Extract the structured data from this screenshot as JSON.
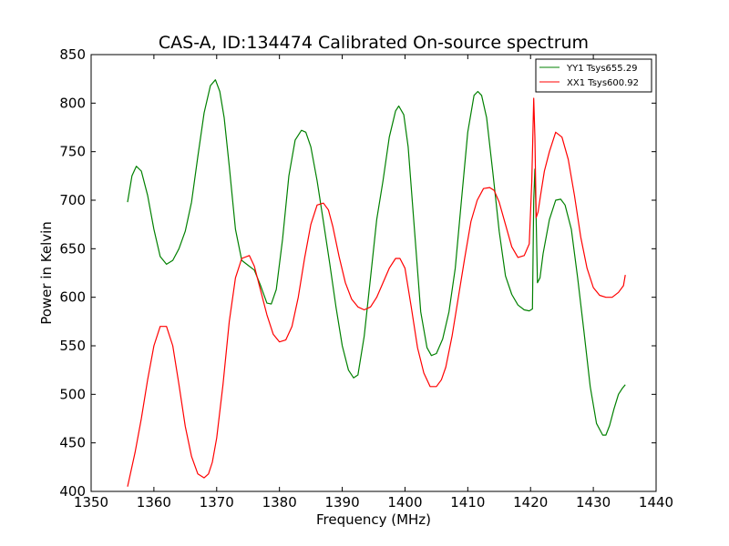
{
  "chart_data": {
    "type": "line",
    "title": "CAS-A, ID:134474 Calibrated On-source spectrum",
    "xlabel": "Frequency (MHz)",
    "ylabel": "Power in Kelvin",
    "xlim": [
      1350,
      1440
    ],
    "ylim": [
      400,
      850
    ],
    "xticks": [
      1350,
      1360,
      1370,
      1380,
      1390,
      1400,
      1410,
      1420,
      1430,
      1440
    ],
    "yticks": [
      400,
      450,
      500,
      550,
      600,
      650,
      700,
      750,
      800,
      850
    ],
    "grid": false,
    "legend_position": "top-right",
    "series": [
      {
        "name": "YY1 Tsys655.29",
        "color": "#008000",
        "x": [
          1355.8,
          1356.5,
          1357.2,
          1358.0,
          1359.0,
          1360.0,
          1361.0,
          1362.0,
          1363.0,
          1364.0,
          1365.0,
          1366.0,
          1367.0,
          1368.0,
          1369.0,
          1369.8,
          1370.5,
          1371.2,
          1372.0,
          1373.0,
          1374.0,
          1375.0,
          1376.0,
          1377.0,
          1378.0,
          1378.7,
          1379.5,
          1380.5,
          1381.5,
          1382.5,
          1383.5,
          1384.2,
          1385.0,
          1386.0,
          1387.0,
          1388.0,
          1389.0,
          1390.0,
          1391.0,
          1391.8,
          1392.5,
          1393.5,
          1394.5,
          1395.5,
          1396.5,
          1397.5,
          1398.5,
          1399.0,
          1399.8,
          1400.5,
          1401.5,
          1402.5,
          1403.5,
          1404.2,
          1405.0,
          1406.0,
          1407.0,
          1408.0,
          1409.0,
          1410.0,
          1411.0,
          1411.6,
          1412.2,
          1413.0,
          1414.0,
          1415.0,
          1416.0,
          1417.0,
          1418.0,
          1419.0,
          1419.8,
          1420.3,
          1420.5,
          1420.7,
          1420.9,
          1421.1,
          1421.5,
          1422.0,
          1423.0,
          1424.0,
          1424.8,
          1425.5,
          1426.5,
          1427.5,
          1428.5,
          1429.5,
          1430.5,
          1431.5,
          1432.0,
          1432.6,
          1433.3,
          1434.0,
          1434.6,
          1435.1
        ],
        "y": [
          698,
          725,
          735,
          730,
          705,
          670,
          642,
          634,
          638,
          650,
          668,
          698,
          745,
          790,
          818,
          824,
          812,
          785,
          735,
          670,
          638,
          633,
          628,
          612,
          594,
          593,
          608,
          660,
          725,
          762,
          772,
          770,
          755,
          720,
          678,
          635,
          590,
          550,
          525,
          517,
          520,
          560,
          620,
          680,
          720,
          765,
          792,
          797,
          788,
          755,
          670,
          585,
          548,
          540,
          542,
          557,
          585,
          630,
          700,
          770,
          808,
          812,
          808,
          785,
          728,
          668,
          622,
          603,
          592,
          587,
          586,
          588,
          700,
          732,
          680,
          615,
          620,
          645,
          680,
          700,
          701,
          695,
          670,
          620,
          565,
          508,
          470,
          458,
          458,
          468,
          485,
          500,
          506,
          510
        ]
      },
      {
        "name": "XX1 Tsys600.92",
        "color": "#ff0000",
        "x": [
          1355.8,
          1357.0,
          1358.0,
          1359.0,
          1360.0,
          1361.0,
          1362.0,
          1363.0,
          1364.0,
          1365.0,
          1366.0,
          1367.0,
          1368.0,
          1368.7,
          1369.3,
          1370.0,
          1371.0,
          1372.0,
          1373.0,
          1374.0,
          1375.2,
          1376.0,
          1377.0,
          1378.0,
          1379.0,
          1380.0,
          1381.0,
          1382.0,
          1383.0,
          1384.0,
          1385.0,
          1386.0,
          1387.0,
          1387.8,
          1388.5,
          1389.5,
          1390.5,
          1391.5,
          1392.5,
          1393.5,
          1394.5,
          1395.5,
          1396.5,
          1397.5,
          1398.5,
          1399.2,
          1400.0,
          1401.0,
          1402.0,
          1403.0,
          1404.0,
          1405.0,
          1405.8,
          1406.5,
          1407.5,
          1408.5,
          1409.5,
          1410.5,
          1411.5,
          1412.5,
          1413.5,
          1414.2,
          1415.0,
          1416.0,
          1417.0,
          1418.0,
          1419.0,
          1419.8,
          1420.2,
          1420.5,
          1420.7,
          1420.9,
          1421.2,
          1421.6,
          1422.2,
          1423.0,
          1424.0,
          1425.0,
          1426.0,
          1427.0,
          1428.0,
          1429.0,
          1430.0,
          1431.0,
          1432.0,
          1433.0,
          1434.0,
          1434.8,
          1435.1
        ],
        "y": [
          405,
          440,
          475,
          515,
          550,
          570,
          570,
          550,
          510,
          467,
          436,
          418,
          414,
          418,
          430,
          455,
          510,
          575,
          620,
          640,
          643,
          632,
          607,
          582,
          562,
          554,
          556,
          570,
          600,
          640,
          675,
          695,
          697,
          690,
          673,
          642,
          615,
          598,
          590,
          587,
          590,
          600,
          615,
          630,
          640,
          640,
          630,
          590,
          548,
          522,
          508,
          508,
          515,
          528,
          560,
          600,
          640,
          678,
          700,
          712,
          713,
          710,
          698,
          675,
          652,
          641,
          643,
          655,
          720,
          805,
          765,
          682,
          688,
          705,
          730,
          750,
          770,
          765,
          742,
          705,
          662,
          630,
          610,
          602,
          600,
          600,
          605,
          612,
          623
        ]
      }
    ]
  }
}
